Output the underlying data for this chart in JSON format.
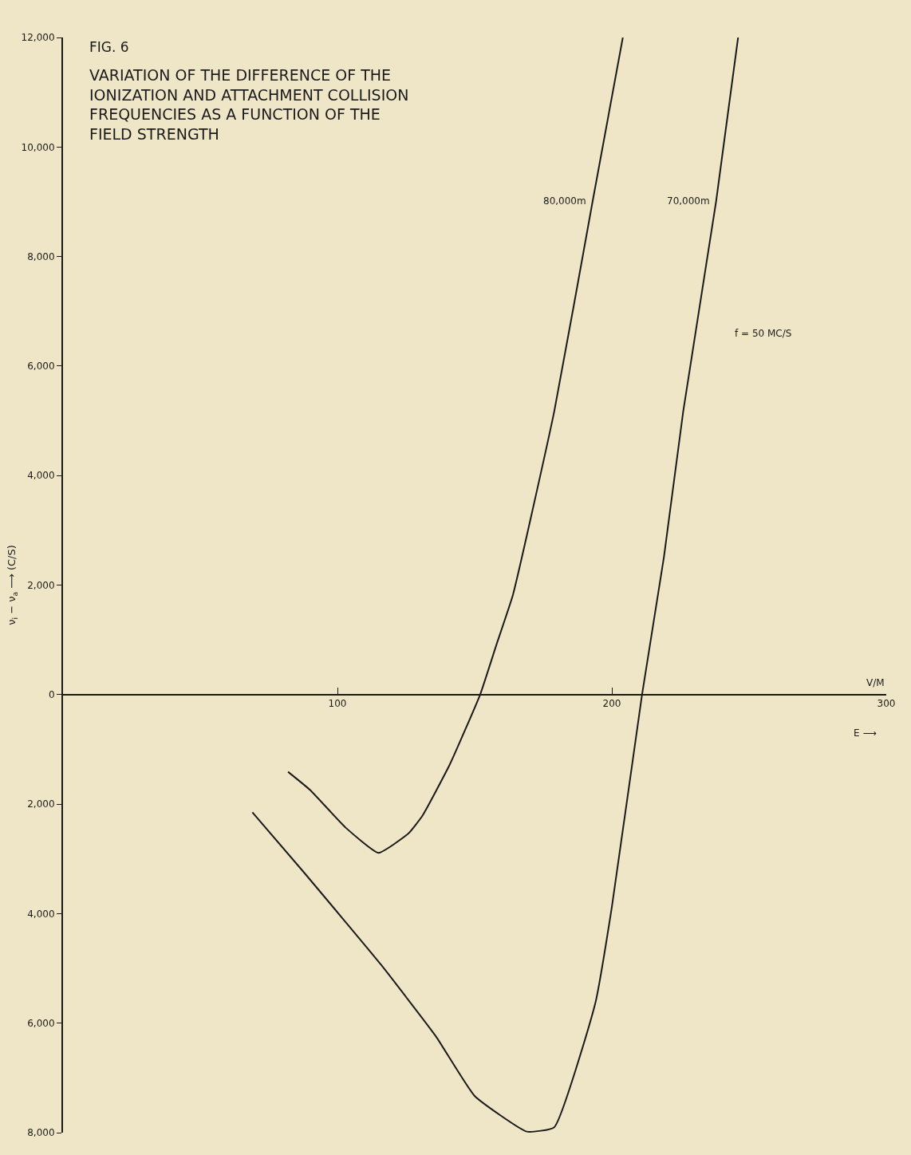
{
  "chart_data": {
    "type": "line",
    "title": "FIG. 6",
    "subtitle": "VARIATION OF THE DIFFERENCE OF THE\nIONIZATION AND ATTACHMENT COLLISION\nFREQUENCIES AS A FUNCTION OF THE\nFIELD STRENGTH",
    "xlabel": "V/M",
    "ylabel": "ν$_{i}$ − ν$_{a}$ ⟶ (C/S)",
    "annotations": [
      "f = 50 MC/S",
      "E ⟶"
    ],
    "xlim": [
      0,
      300
    ],
    "xticks": [
      100,
      200,
      300
    ],
    "ylim": [
      -8000,
      12000
    ],
    "yticks": [
      {
        "value": -8000,
        "label": "8,000"
      },
      {
        "value": -6000,
        "label": "6,000"
      },
      {
        "value": -4000,
        "label": "4,000"
      },
      {
        "value": -2000,
        "label": "2,000"
      },
      0,
      {
        "value": 2000,
        "label": "2,000"
      },
      {
        "value": 4000,
        "label": "4,000"
      },
      {
        "value": 6000,
        "label": "6,000"
      },
      {
        "value": 8000,
        "label": "8,000"
      },
      {
        "value": 10000,
        "label": "10,000"
      },
      {
        "value": 12000,
        "label": "12,000"
      }
    ],
    "grid": false,
    "legend": false,
    "marker": "none",
    "line_style": "solid",
    "series": [
      {
        "name": "80,000m",
        "color": "#1a1a1a",
        "x": [
          82,
          90,
          103,
          115,
          126,
          131,
          141,
          152,
          158,
          164,
          179,
          193,
          204
        ],
        "values": [
          -1410,
          -1740,
          -2430,
          -2890,
          -2530,
          -2210,
          -1270,
          0,
          920,
          1830,
          5170,
          9010,
          12000
        ]
      },
      {
        "name": "70,000m",
        "color": "#1a1a1a",
        "x": [
          69,
          87,
          116,
          136,
          150,
          169,
          179,
          194,
          200,
          211,
          219,
          226,
          238,
          246
        ],
        "values": [
          -2150,
          -3200,
          -4940,
          -6250,
          -7330,
          -7980,
          -7900,
          -5630,
          -3880,
          0,
          2520,
          5170,
          9010,
          12000
        ]
      }
    ]
  }
}
